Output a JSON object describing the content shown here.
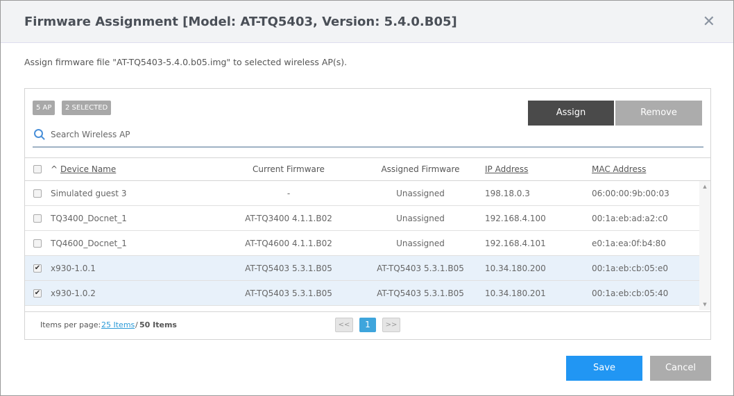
{
  "dialog": {
    "title": "Firmware Assignment [Model: AT-TQ5403, Version: 5.4.0.B05]",
    "description": "Assign firmware file \"AT-TQ5403-5.4.0.b05.img\" to selected wireless AP(s)."
  },
  "badges": {
    "count": "5 AP",
    "selected": "2 SELECTED"
  },
  "buttons": {
    "assign": "Assign",
    "remove": "Remove",
    "save": "Save",
    "cancel": "Cancel"
  },
  "search": {
    "placeholder": "Search Wireless AP",
    "value": ""
  },
  "columns": {
    "device": "Device Name",
    "current": "Current Firmware",
    "assigned": "Assigned Firmware",
    "ip": "IP Address",
    "mac": "MAC Address"
  },
  "rows": [
    {
      "checked": false,
      "device": "Simulated guest 3",
      "current": "-",
      "assigned": "Unassigned",
      "ip": "198.18.0.3",
      "mac": "06:00:00:9b:00:03"
    },
    {
      "checked": false,
      "device": "TQ3400_Docnet_1",
      "current": "AT-TQ3400 4.1.1.B02",
      "assigned": "Unassigned",
      "ip": "192.168.4.100",
      "mac": "00:1a:eb:ad:a2:c0"
    },
    {
      "checked": false,
      "device": "TQ4600_Docnet_1",
      "current": "AT-TQ4600 4.1.1.B02",
      "assigned": "Unassigned",
      "ip": "192.168.4.101",
      "mac": "e0:1a:ea:0f:b4:80"
    },
    {
      "checked": true,
      "device": "x930-1.0.1",
      "current": "AT-TQ5403 5.3.1.B05",
      "assigned": "AT-TQ5403 5.3.1.B05",
      "ip": "10.34.180.200",
      "mac": "00:1a:eb:cb:05:e0"
    },
    {
      "checked": true,
      "device": "x930-1.0.2",
      "current": "AT-TQ5403 5.3.1.B05",
      "assigned": "AT-TQ5403 5.3.1.B05",
      "ip": "10.34.180.201",
      "mac": "00:1a:eb:cb:05:40"
    }
  ],
  "footer": {
    "label": "Items per page:",
    "per_page": "25 Items",
    "separator": "/",
    "total": "50 Items",
    "prev": "<<",
    "page": "1",
    "next": ">>"
  },
  "colors": {
    "accent": "#2196f3",
    "dark": "#4a4a4a"
  }
}
